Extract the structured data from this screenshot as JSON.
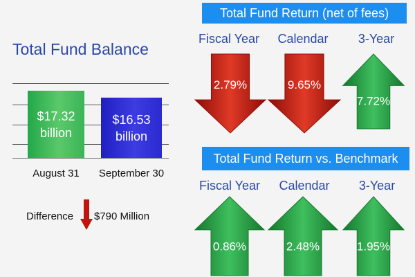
{
  "balance": {
    "title": "Total Fund Balance",
    "difference_label": "Difference",
    "difference_value": "$790 Million",
    "difference_direction": "down"
  },
  "returns_net": {
    "title": "Total Fund Return (net of fees)",
    "items": [
      {
        "label": "Fiscal Year",
        "value": "2.79%",
        "direction": "down",
        "color": "#c0150e"
      },
      {
        "label": "Calendar",
        "value": "9.65%",
        "direction": "down",
        "color": "#c0150e"
      },
      {
        "label": "3-Year",
        "value": "7.72%",
        "direction": "up",
        "color": "#1f9a3e"
      }
    ]
  },
  "returns_vs_benchmark": {
    "title": "Total Fund Return vs. Benchmark",
    "items": [
      {
        "label": "Fiscal Year",
        "value": "0.86%",
        "direction": "up",
        "color": "#1f9a3e"
      },
      {
        "label": "Calendar",
        "value": "2.48%",
        "direction": "up",
        "color": "#1f9a3e"
      },
      {
        "label": "3-Year",
        "value": "1.95%",
        "direction": "up",
        "color": "#1f9a3e"
      }
    ]
  },
  "chart_data": [
    {
      "type": "bar",
      "title": "Total Fund Balance",
      "categories": [
        "August 31",
        "September 30"
      ],
      "values": [
        17.32,
        16.53
      ],
      "value_labels": [
        [
          "$17.32",
          "billion"
        ],
        [
          "$16.53",
          "billion"
        ]
      ],
      "colors": [
        "#3bb457",
        "#2a2ad0"
      ],
      "grid": true
    }
  ]
}
